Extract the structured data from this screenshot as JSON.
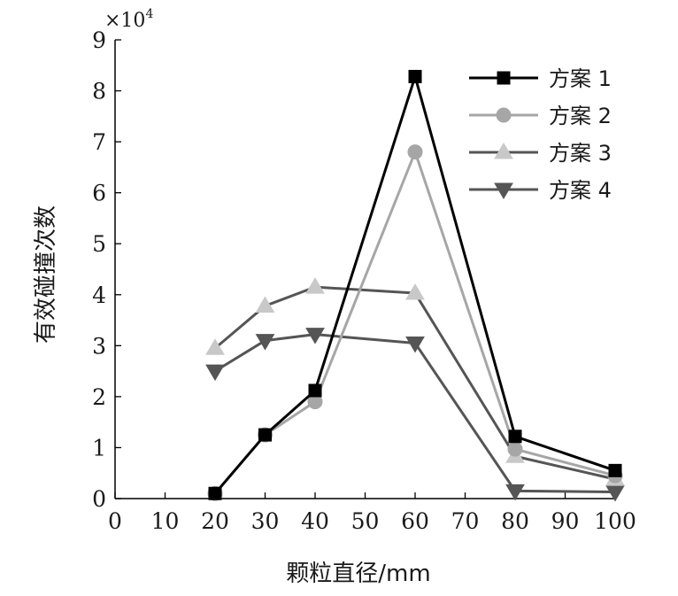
{
  "chart_data": {
    "type": "line",
    "xlabel": "颗粒直径/mm",
    "ylabel": "有效碰撞次数",
    "y_multiplier": {
      "base": "×10",
      "exponent": "4"
    },
    "xlim": [
      0,
      100
    ],
    "ylim": [
      0,
      9
    ],
    "xticks": [
      0,
      10,
      20,
      30,
      40,
      50,
      60,
      70,
      80,
      90,
      100
    ],
    "yticks": [
      0,
      1,
      2,
      3,
      4,
      5,
      6,
      7,
      8,
      9
    ],
    "grid": false,
    "legend_position": "top-right",
    "series": [
      {
        "name": "方案 1",
        "marker": "square",
        "color": "#000000",
        "x": [
          20,
          30,
          40,
          60,
          80,
          100
        ],
        "y": [
          0.1,
          1.25,
          2.12,
          8.28,
          1.22,
          0.55
        ]
      },
      {
        "name": "方案 2",
        "marker": "circle",
        "color": "#a6a6a6",
        "x": [
          20,
          30,
          40,
          60,
          80,
          100
        ],
        "y": [
          0.1,
          1.25,
          1.9,
          6.8,
          0.97,
          0.45
        ]
      },
      {
        "name": "方案 3",
        "marker": "triangle-up",
        "color": "#555555",
        "marker_color": "#c8c8c8",
        "x": [
          20,
          30,
          40,
          60,
          80,
          100
        ],
        "y": [
          2.95,
          3.78,
          4.15,
          4.03,
          0.83,
          0.38
        ]
      },
      {
        "name": "方案 4",
        "marker": "triangle-down",
        "color": "#555555",
        "marker_color": "#555555",
        "x": [
          20,
          30,
          40,
          60,
          80,
          100
        ],
        "y": [
          2.5,
          3.1,
          3.22,
          3.05,
          0.15,
          0.13
        ]
      }
    ]
  }
}
